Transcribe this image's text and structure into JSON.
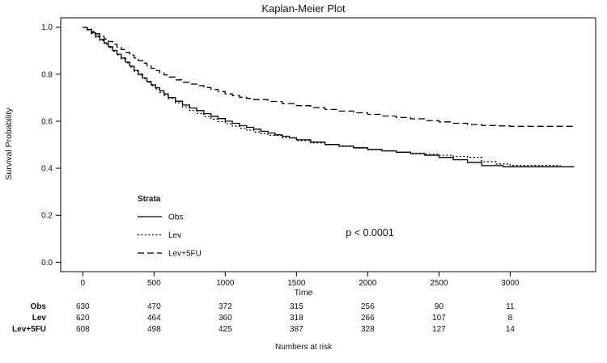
{
  "chart_data": {
    "type": "line",
    "subtype": "kaplan-meier-step",
    "title": "Kaplan-Meier Plot",
    "xlabel": "Time",
    "ylabel": "Survival Probability",
    "xlim": [
      -155,
      3600
    ],
    "ylim": [
      -0.04,
      1.04
    ],
    "x_ticks": [
      0,
      500,
      1000,
      1500,
      2000,
      2500,
      3000
    ],
    "y_ticks": [
      0.0,
      0.2,
      0.4,
      0.6,
      0.8,
      1.0
    ],
    "grid": false,
    "legend_position": "inside-lower-left",
    "legend_title": "Strata",
    "annotation": "p < 0.0001",
    "series": [
      {
        "name": "Obs",
        "dash": "solid",
        "points": [
          [
            0,
            1.0
          ],
          [
            30,
            0.99
          ],
          [
            60,
            0.976
          ],
          [
            90,
            0.962
          ],
          [
            120,
            0.948
          ],
          [
            150,
            0.933
          ],
          [
            180,
            0.917
          ],
          [
            210,
            0.901
          ],
          [
            240,
            0.885
          ],
          [
            270,
            0.869
          ],
          [
            300,
            0.851
          ],
          [
            330,
            0.834
          ],
          [
            360,
            0.816
          ],
          [
            390,
            0.8
          ],
          [
            420,
            0.784
          ],
          [
            450,
            0.769
          ],
          [
            480,
            0.755
          ],
          [
            510,
            0.742
          ],
          [
            540,
            0.73
          ],
          [
            570,
            0.716
          ],
          [
            600,
            0.701
          ],
          [
            650,
            0.685
          ],
          [
            700,
            0.669
          ],
          [
            750,
            0.656
          ],
          [
            800,
            0.645
          ],
          [
            850,
            0.632
          ],
          [
            900,
            0.621
          ],
          [
            950,
            0.611
          ],
          [
            1000,
            0.6
          ],
          [
            1050,
            0.591
          ],
          [
            1100,
            0.581
          ],
          [
            1150,
            0.574
          ],
          [
            1200,
            0.566
          ],
          [
            1250,
            0.557
          ],
          [
            1300,
            0.55
          ],
          [
            1350,
            0.542
          ],
          [
            1400,
            0.536
          ],
          [
            1450,
            0.529
          ],
          [
            1500,
            0.521
          ],
          [
            1600,
            0.511
          ],
          [
            1700,
            0.501
          ],
          [
            1800,
            0.494
          ],
          [
            1900,
            0.487
          ],
          [
            2000,
            0.48
          ],
          [
            2100,
            0.474
          ],
          [
            2200,
            0.468
          ],
          [
            2300,
            0.462
          ],
          [
            2400,
            0.455
          ],
          [
            2500,
            0.446
          ],
          [
            2600,
            0.436
          ],
          [
            2700,
            0.425
          ],
          [
            2800,
            0.411
          ],
          [
            2950,
            0.406
          ],
          [
            3450,
            0.406
          ]
        ]
      },
      {
        "name": "Lev",
        "dash": "dotted",
        "points": [
          [
            0,
            1.0
          ],
          [
            30,
            0.988
          ],
          [
            60,
            0.973
          ],
          [
            90,
            0.958
          ],
          [
            120,
            0.943
          ],
          [
            150,
            0.928
          ],
          [
            180,
            0.913
          ],
          [
            210,
            0.898
          ],
          [
            240,
            0.882
          ],
          [
            270,
            0.865
          ],
          [
            300,
            0.848
          ],
          [
            330,
            0.831
          ],
          [
            360,
            0.813
          ],
          [
            390,
            0.797
          ],
          [
            420,
            0.781
          ],
          [
            450,
            0.766
          ],
          [
            480,
            0.751
          ],
          [
            510,
            0.737
          ],
          [
            540,
            0.723
          ],
          [
            570,
            0.71
          ],
          [
            600,
            0.696
          ],
          [
            650,
            0.678
          ],
          [
            700,
            0.661
          ],
          [
            750,
            0.646
          ],
          [
            800,
            0.633
          ],
          [
            850,
            0.62
          ],
          [
            900,
            0.609
          ],
          [
            950,
            0.598
          ],
          [
            1000,
            0.589
          ],
          [
            1050,
            0.579
          ],
          [
            1100,
            0.57
          ],
          [
            1150,
            0.562
          ],
          [
            1200,
            0.554
          ],
          [
            1250,
            0.547
          ],
          [
            1300,
            0.54
          ],
          [
            1400,
            0.53
          ],
          [
            1500,
            0.518
          ],
          [
            1600,
            0.508
          ],
          [
            1700,
            0.5
          ],
          [
            1800,
            0.493
          ],
          [
            1900,
            0.486
          ],
          [
            2000,
            0.479
          ],
          [
            2100,
            0.473
          ],
          [
            2200,
            0.468
          ],
          [
            2300,
            0.464
          ],
          [
            2400,
            0.46
          ],
          [
            2500,
            0.455
          ],
          [
            2600,
            0.45
          ],
          [
            2700,
            0.446
          ],
          [
            2800,
            0.428
          ],
          [
            2900,
            0.418
          ],
          [
            3000,
            0.412
          ],
          [
            3350,
            0.41
          ]
        ]
      },
      {
        "name": "Lev+5FU",
        "dash": "dashed",
        "points": [
          [
            0,
            1.0
          ],
          [
            30,
            0.992
          ],
          [
            60,
            0.982
          ],
          [
            90,
            0.972
          ],
          [
            120,
            0.961
          ],
          [
            150,
            0.95
          ],
          [
            180,
            0.939
          ],
          [
            210,
            0.928
          ],
          [
            240,
            0.916
          ],
          [
            270,
            0.905
          ],
          [
            300,
            0.893
          ],
          [
            330,
            0.881
          ],
          [
            360,
            0.869
          ],
          [
            390,
            0.858
          ],
          [
            420,
            0.847
          ],
          [
            450,
            0.836
          ],
          [
            480,
            0.825
          ],
          [
            510,
            0.815
          ],
          [
            540,
            0.806
          ],
          [
            570,
            0.797
          ],
          [
            600,
            0.788
          ],
          [
            650,
            0.776
          ],
          [
            700,
            0.766
          ],
          [
            750,
            0.758
          ],
          [
            800,
            0.751
          ],
          [
            850,
            0.743
          ],
          [
            900,
            0.735
          ],
          [
            950,
            0.726
          ],
          [
            1000,
            0.716
          ],
          [
            1050,
            0.709
          ],
          [
            1100,
            0.702
          ],
          [
            1150,
            0.697
          ],
          [
            1200,
            0.692
          ],
          [
            1300,
            0.684
          ],
          [
            1400,
            0.675
          ],
          [
            1500,
            0.666
          ],
          [
            1600,
            0.658
          ],
          [
            1700,
            0.65
          ],
          [
            1800,
            0.643
          ],
          [
            1900,
            0.636
          ],
          [
            2000,
            0.629
          ],
          [
            2100,
            0.622
          ],
          [
            2200,
            0.616
          ],
          [
            2300,
            0.61
          ],
          [
            2400,
            0.603
          ],
          [
            2500,
            0.597
          ],
          [
            2600,
            0.591
          ],
          [
            2700,
            0.586
          ],
          [
            2800,
            0.582
          ],
          [
            2900,
            0.58
          ],
          [
            3000,
            0.578
          ],
          [
            3450,
            0.578
          ]
        ]
      }
    ],
    "risk_table": {
      "caption": "Numbers at risk",
      "times": [
        0,
        500,
        1000,
        1500,
        2000,
        2500,
        3000
      ],
      "rows": [
        {
          "name": "Obs",
          "values": [
            630,
            470,
            372,
            315,
            256,
            90,
            11
          ]
        },
        {
          "name": "Lev",
          "values": [
            620,
            464,
            360,
            318,
            266,
            107,
            8
          ]
        },
        {
          "name": "Lev+5FU",
          "values": [
            608,
            498,
            425,
            387,
            328,
            127,
            14
          ]
        }
      ]
    },
    "colors": {
      "stroke": "#000000",
      "background": "#ffffff"
    }
  }
}
